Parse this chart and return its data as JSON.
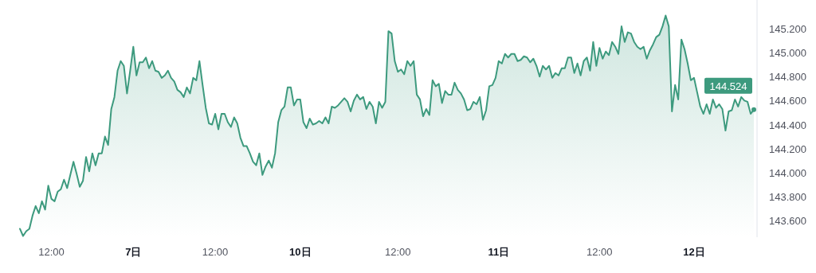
{
  "chart_data": {
    "type": "area",
    "color": "#3d9a7e",
    "categories": [
      null,
      null,
      null,
      null,
      null,
      null,
      null,
      null,
      null,
      null,
      "12:00",
      null,
      null,
      null,
      null,
      null,
      null,
      null,
      null,
      null,
      null,
      null,
      null,
      null,
      null,
      null,
      null,
      null,
      null,
      null,
      null,
      null,
      null,
      null,
      null,
      null,
      "7日",
      null,
      null,
      null,
      null,
      null,
      null,
      null,
      null,
      null,
      null,
      null,
      null,
      null,
      null,
      null,
      null,
      null,
      null,
      null,
      null,
      null,
      null,
      null,
      null,
      null,
      "12:00",
      null,
      null,
      null,
      null,
      null,
      null,
      null,
      null,
      null,
      null,
      null,
      null,
      null,
      null,
      null,
      null,
      null,
      null,
      null,
      null,
      null,
      null,
      null,
      null,
      null,
      null,
      "10日",
      null,
      null,
      null,
      null,
      null,
      null,
      null,
      null,
      null,
      null,
      null,
      null,
      null,
      null,
      null,
      null,
      null,
      null,
      null,
      null,
      null,
      null,
      null,
      null,
      null,
      null,
      null,
      null,
      null,
      null,
      "12:00",
      null,
      null,
      null,
      null,
      null,
      null,
      null,
      null,
      null,
      null,
      null,
      null,
      null,
      null,
      null,
      null,
      null,
      null,
      null,
      null,
      null,
      null,
      null,
      null,
      null,
      null,
      null,
      null,
      null,
      null,
      null,
      "11日",
      null,
      null,
      null,
      null,
      null,
      null,
      null,
      null,
      null,
      null,
      null,
      null,
      null,
      null,
      null,
      null,
      null,
      null,
      null,
      null,
      null,
      null,
      null,
      null,
      null,
      null,
      null,
      null,
      null,
      null,
      null,
      "12:00",
      null,
      null,
      null,
      null,
      null,
      null,
      null,
      null,
      null,
      null,
      null,
      null,
      null,
      null,
      null,
      null,
      null,
      null,
      null,
      null,
      null,
      null,
      null,
      null,
      null,
      null,
      null,
      null,
      null,
      "12日",
      null,
      null,
      null,
      null,
      null,
      null,
      null,
      null,
      null,
      null,
      null,
      null,
      null,
      null,
      null,
      null,
      null,
      null,
      null
    ],
    "values": [
      143.53,
      143.47,
      143.51,
      143.53,
      143.64,
      143.72,
      143.66,
      143.76,
      143.69,
      143.89,
      143.78,
      143.76,
      143.84,
      143.86,
      143.94,
      143.87,
      143.98,
      144.09,
      143.99,
      143.88,
      143.93,
      144.13,
      144.01,
      144.16,
      144.06,
      144.16,
      144.16,
      144.3,
      144.23,
      144.53,
      144.63,
      144.85,
      144.93,
      144.89,
      144.66,
      144.85,
      145.05,
      144.81,
      144.92,
      144.92,
      144.96,
      144.87,
      144.93,
      144.85,
      144.84,
      144.79,
      144.81,
      144.85,
      144.79,
      144.76,
      144.69,
      144.67,
      144.63,
      144.71,
      144.66,
      144.79,
      144.77,
      144.93,
      144.73,
      144.54,
      144.41,
      144.4,
      144.49,
      144.36,
      144.49,
      144.49,
      144.42,
      144.38,
      144.46,
      144.41,
      144.29,
      144.22,
      144.22,
      144.16,
      144.09,
      144.06,
      144.16,
      143.98,
      144.05,
      144.1,
      144.04,
      144.16,
      144.42,
      144.52,
      144.55,
      144.71,
      144.71,
      144.56,
      144.61,
      144.61,
      144.42,
      144.37,
      144.45,
      144.4,
      144.41,
      144.43,
      144.41,
      144.46,
      144.41,
      144.55,
      144.54,
      144.56,
      144.59,
      144.62,
      144.59,
      144.51,
      144.6,
      144.65,
      144.61,
      144.63,
      144.53,
      144.59,
      144.55,
      144.41,
      144.59,
      144.54,
      144.59,
      145.18,
      145.16,
      144.93,
      144.84,
      144.86,
      144.82,
      144.93,
      144.89,
      144.93,
      144.65,
      144.61,
      144.47,
      144.53,
      144.48,
      144.77,
      144.72,
      144.74,
      144.58,
      144.68,
      144.65,
      144.65,
      144.75,
      144.69,
      144.66,
      144.61,
      144.52,
      144.53,
      144.59,
      144.57,
      144.63,
      144.44,
      144.52,
      144.72,
      144.73,
      144.79,
      144.93,
      144.91,
      144.99,
      144.96,
      144.99,
      144.99,
      144.93,
      144.94,
      144.97,
      144.96,
      144.92,
      144.95,
      144.89,
      144.8,
      144.89,
      144.86,
      144.89,
      144.79,
      144.83,
      144.81,
      144.87,
      144.87,
      144.96,
      144.96,
      144.83,
      144.91,
      144.81,
      144.93,
      144.96,
      144.85,
      145.09,
      144.89,
      145.04,
      144.95,
      145.01,
      144.98,
      145.09,
      145.05,
      144.99,
      145.22,
      145.09,
      145.17,
      145.16,
      145.09,
      145.05,
      145.03,
      145.05,
      144.95,
      145.02,
      145.07,
      145.13,
      145.15,
      145.22,
      145.31,
      145.22,
      144.51,
      144.73,
      144.61,
      145.11,
      145.03,
      144.91,
      144.77,
      144.79,
      144.67,
      144.55,
      144.49,
      144.57,
      144.49,
      144.61,
      144.54,
      144.57,
      144.53,
      144.35,
      144.51,
      144.52,
      144.61,
      144.55,
      144.63,
      144.6,
      144.59,
      144.49,
      144.524
    ],
    "ylim": [
      143.46,
      145.44
    ],
    "yticks": [
      {
        "value": 143.6,
        "label": "143.600"
      },
      {
        "value": 143.8,
        "label": "143.800"
      },
      {
        "value": 144.0,
        "label": "144.000"
      },
      {
        "value": 144.2,
        "label": "144.200"
      },
      {
        "value": 144.4,
        "label": "144.400"
      },
      {
        "value": 144.6,
        "label": "144.600"
      },
      {
        "value": 144.8,
        "label": "144.800"
      },
      {
        "value": 145.0,
        "label": "145.000"
      },
      {
        "value": 145.2,
        "label": "145.200"
      }
    ],
    "annotations": [
      {
        "text": "144.524",
        "y": 144.524
      }
    ]
  }
}
